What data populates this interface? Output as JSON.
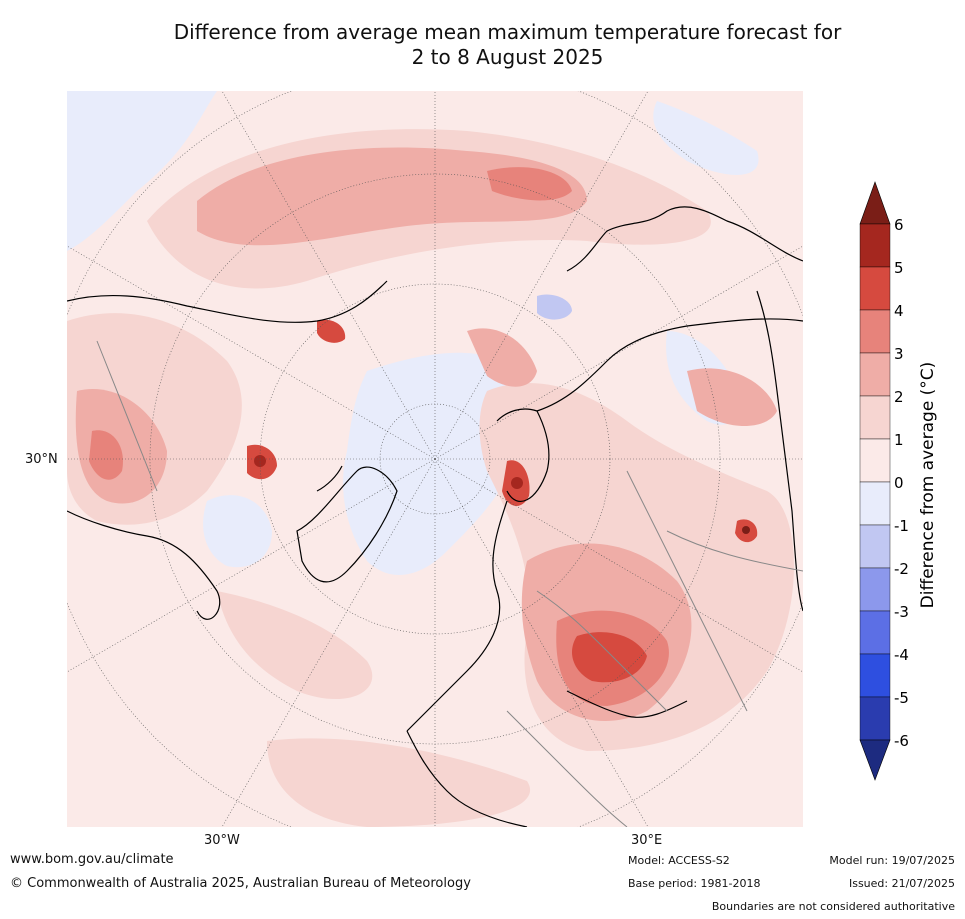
{
  "title_line1": "Difference from average mean maximum temperature forecast for",
  "title_line2": "2 to 8 August 2025",
  "map": {
    "projection": "north-polar-stereographic",
    "lat_label": "30°N",
    "lon_labels": [
      "30°W",
      "30°E"
    ]
  },
  "colorbar": {
    "label": "Difference from average (°C)",
    "ticks": [
      "6",
      "5",
      "4",
      "3",
      "2",
      "1",
      "0",
      "-1",
      "-2",
      "-3",
      "-4",
      "-5",
      "-6"
    ],
    "colors": [
      "#7a1e17",
      "#a5271f",
      "#d64a3f",
      "#e7837b",
      "#efada7",
      "#f6d5d1",
      "#fbeae8",
      "#e8ecfb",
      "#c1c7f2",
      "#8c98ec",
      "#5c6fe5",
      "#2e4fe0",
      "#2a3caf",
      "#1d2b80"
    ]
  },
  "footer": {
    "url": "www.bom.gov.au/climate",
    "copyright": "© Commonwealth of Australia 2025, Australian Bureau of Meteorology",
    "model": "Model: ACCESS-S2",
    "base_period": "Base period: 1981-2018",
    "model_run": "Model run: 19/07/2025",
    "issued": "Issued: 21/07/2025",
    "disclaimer": "Boundaries are not considered authoritative"
  }
}
